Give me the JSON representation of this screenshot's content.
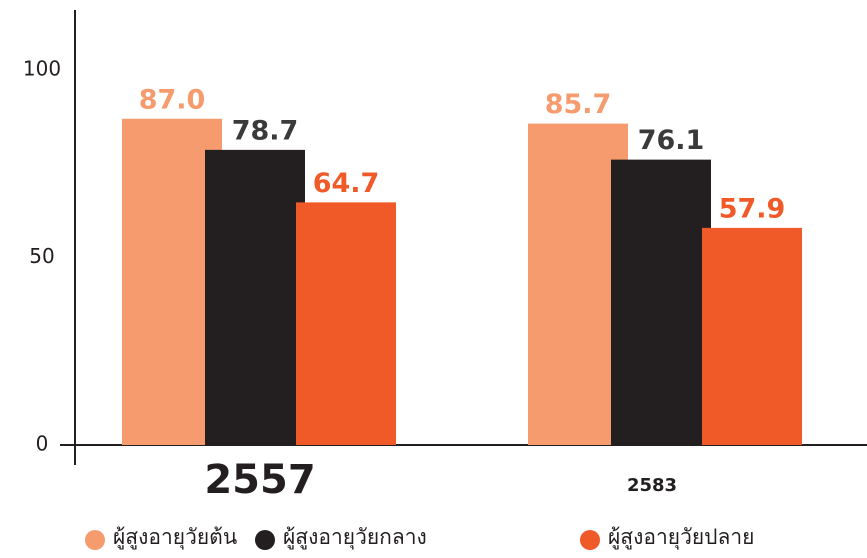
{
  "chart_data": {
    "type": "bar",
    "categories": [
      "2557",
      "2583"
    ],
    "series": [
      {
        "name": "ผู้สูงอายุวัยต้น",
        "color": "#f59b6e",
        "values": [
          87.0,
          85.7
        ],
        "value_labels": [
          "87.0",
          "85.7"
        ]
      },
      {
        "name": "ผู้สูงอายุวัยกลาง",
        "color": "#231f20",
        "values": [
          78.7,
          76.1
        ],
        "value_labels": [
          "78.7",
          "76.1"
        ]
      },
      {
        "name": "ผู้สูงอายุวัยปลาย",
        "color": "#f05a28",
        "values": [
          64.7,
          57.9
        ],
        "value_labels": [
          "64.7",
          "57.9"
        ]
      }
    ],
    "ylim": [
      0,
      116
    ],
    "yticks": [
      0,
      50,
      100
    ],
    "legend": "bottom"
  }
}
